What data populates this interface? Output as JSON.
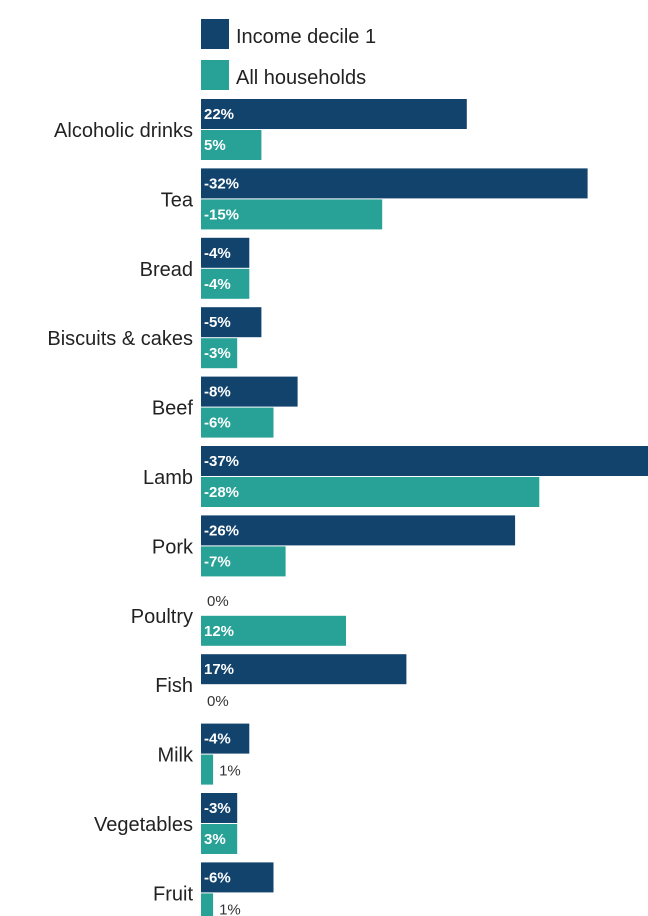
{
  "chart_data": {
    "type": "bar",
    "orientation": "horizontal",
    "title": "",
    "xlabel": "",
    "ylabel": "",
    "legend_position": "top",
    "grid": false,
    "value_scale": "absolute magnitude",
    "categories": [
      "Alcoholic drinks",
      "Tea",
      "Bread",
      "Biscuits & cakes",
      "Beef",
      "Lamb",
      "Pork",
      "Poultry",
      "Fish",
      "Milk",
      "Vegetables",
      "Fruit"
    ],
    "series": [
      {
        "name": "Income decile 1",
        "color": "#12436d",
        "values": [
          22,
          -32,
          -4,
          -5,
          -8,
          -37,
          -26,
          0,
          17,
          -4,
          -3,
          -6
        ],
        "labels": [
          "22%",
          "-32%",
          "-4%",
          "-5%",
          "-8%",
          "-37%",
          "-26%",
          "0%",
          "17%",
          "-4%",
          "-3%",
          "-6%"
        ]
      },
      {
        "name": "All households",
        "color": "#28a197",
        "values": [
          5,
          -15,
          -4,
          -3,
          -6,
          -28,
          -7,
          12,
          0,
          1,
          3,
          1
        ],
        "labels": [
          "5%",
          "-15%",
          "-4%",
          "-3%",
          "-6%",
          "-28%",
          "-7%",
          "12%",
          "0%",
          "1%",
          "3%",
          "1%"
        ]
      }
    ]
  }
}
